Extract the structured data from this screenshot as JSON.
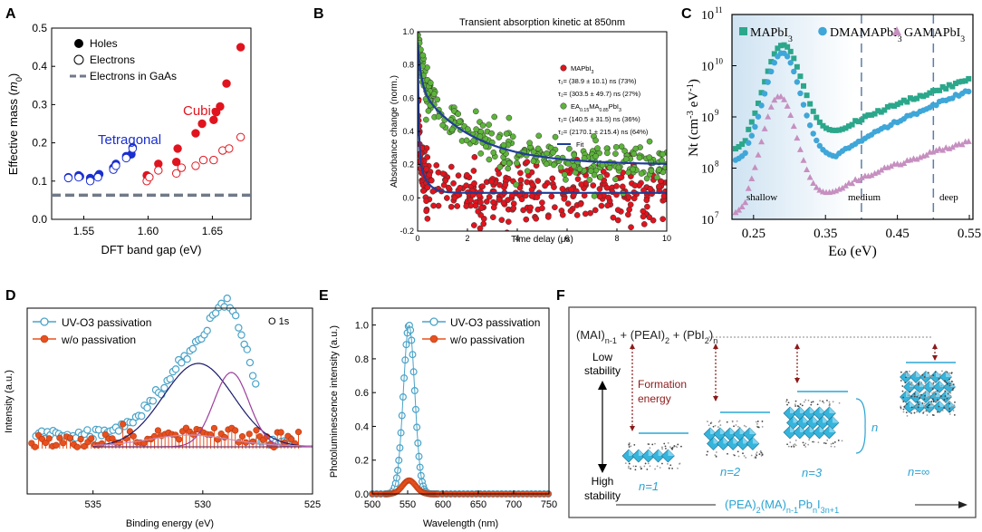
{
  "panel_labels": [
    "A",
    "B",
    "C",
    "D",
    "E",
    "F"
  ],
  "colors": {
    "blue": "#1a2fd0",
    "red": "#e0141e",
    "green": "#5db43a",
    "darkred": "#c0262c",
    "navy": "#1f3d99",
    "teal": "#2ba78b",
    "cyan": "#3fa6d8",
    "pink": "#c68fc0",
    "ltblue": "#4aa3c8",
    "orange": "#e8501f",
    "purple": "#9c3e9c"
  },
  "chart_data": [
    {
      "id": "A",
      "type": "scatter",
      "xlabel": "DFT band gap (eV)",
      "ylabel": "Effective mass (m0)",
      "ylabel_main": "Effective mass (",
      "ylabel_sym": "m",
      "ylabel_sub": "0",
      "ylabel_close": ")",
      "xlim": [
        1.525,
        1.68
      ],
      "ylim": [
        0,
        0.5
      ],
      "xticks": [
        "1.55",
        "1.60",
        "1.65"
      ],
      "xtick_values": [
        1.55,
        1.6,
        1.65
      ],
      "yticks": [
        "0.0",
        "0.1",
        "0.2",
        "0.3",
        "0.4",
        "0.5"
      ],
      "ytick_values": [
        0,
        0.1,
        0.2,
        0.3,
        0.4,
        0.5
      ],
      "legend": [
        "Holes",
        "Electrons",
        "Electrons in GaAs"
      ],
      "annotations": [
        "Tetragonal",
        "Cubic"
      ],
      "gaas_line": 0.063,
      "series": [
        {
          "name": "Holes tetragonal",
          "style": "filled",
          "color": "blue",
          "x": [
            1.538,
            1.546,
            1.547,
            1.555,
            1.561,
            1.562,
            1.573,
            1.575,
            1.583,
            1.587,
            1.588
          ],
          "y": [
            0.11,
            0.115,
            0.112,
            0.108,
            0.113,
            0.118,
            0.135,
            0.145,
            0.165,
            0.17,
            0.188
          ]
        },
        {
          "name": "Electrons tetragonal",
          "style": "open",
          "color": "blue",
          "x": [
            1.538,
            1.546,
            1.555,
            1.561,
            1.573,
            1.575,
            1.583,
            1.588
          ],
          "y": [
            0.108,
            0.11,
            0.1,
            0.11,
            0.13,
            0.14,
            0.16,
            0.185
          ]
        },
        {
          "name": "Holes cubic",
          "style": "filled",
          "color": "red",
          "x": [
            1.599,
            1.608,
            1.622,
            1.623,
            1.637,
            1.642,
            1.651,
            1.653,
            1.656,
            1.661,
            1.672
          ],
          "y": [
            0.115,
            0.145,
            0.15,
            0.185,
            0.225,
            0.25,
            0.26,
            0.28,
            0.295,
            0.355,
            0.45
          ]
        },
        {
          "name": "Electrons cubic",
          "style": "open",
          "color": "red",
          "x": [
            1.599,
            1.601,
            1.608,
            1.622,
            1.626,
            1.637,
            1.643,
            1.651,
            1.658,
            1.663,
            1.672
          ],
          "y": [
            0.1,
            0.11,
            0.128,
            0.12,
            0.135,
            0.14,
            0.155,
            0.155,
            0.18,
            0.185,
            0.215
          ]
        }
      ]
    },
    {
      "id": "B",
      "type": "scatter",
      "title": "Transient absorption kinetic at 850nm",
      "xlabel": "Time delay (μs)",
      "ylabel": "Absorbance change (norm.)",
      "xlim": [
        0,
        10
      ],
      "ylim": [
        -0.2,
        1.0
      ],
      "xticks": [
        "0",
        "2",
        "4",
        "6",
        "8",
        "10"
      ],
      "xtick_values": [
        0,
        2,
        4,
        6,
        8,
        10
      ],
      "yticks": [
        "-0.2",
        "0.0",
        "0.2",
        "0.4",
        "0.6",
        "0.8",
        "1.0"
      ],
      "ytick_values": [
        -0.2,
        0,
        0.2,
        0.4,
        0.6,
        0.8,
        1.0
      ],
      "legend_lines": [
        {
          "kind": "dot",
          "color": "red",
          "text": "MAPbI",
          "sub": "3"
        },
        {
          "kind": "text",
          "text": "τ₁= (38.9 ± 10.1) ns (73%)"
        },
        {
          "kind": "text",
          "text": "τ₂= (303.5 ± 49.7) ns (27%)"
        },
        {
          "kind": "dot",
          "color": "green",
          "text": "EA",
          "sub": "0.15",
          "text2": "MA",
          "sub2": "0.85",
          "text3": "PbI",
          "sub3": "3"
        },
        {
          "kind": "text",
          "text": "τ₁= (140.5 ± 31.5) ns (36%)"
        },
        {
          "kind": "text",
          "text": "τ₂= (2170.1 ± 215.4) ns (64%)"
        },
        {
          "kind": "line",
          "color": "navy",
          "text": "Fit"
        }
      ],
      "series": [
        {
          "name": "MAPbI3",
          "color": "red",
          "model": {
            "a1": 0.73,
            "t1": 0.039,
            "a2": 0.27,
            "t2": 0.3035,
            "offset": 0.03,
            "noise": 0.09
          }
        },
        {
          "name": "EA0.15MA0.85PbI3",
          "color": "green",
          "model": {
            "a1": 0.36,
            "t1": 0.14,
            "a2": 0.64,
            "t2": 2.17,
            "offset": 0.2,
            "noise": 0.06
          }
        }
      ]
    },
    {
      "id": "C",
      "type": "scatter",
      "xlabel": "Eω (eV)",
      "ylabel": "Nt (cm⁻³ eV⁻¹)",
      "ylabel_main": "Nt (cm",
      "ylabel_sup1": "-3",
      "ylabel_mid": " eV",
      "ylabel_sup2": "-1",
      "ylabel_close": ")",
      "xlim": [
        0.22,
        0.555
      ],
      "ylog": [
        7,
        11
      ],
      "xticks": [
        "0.25",
        "0.35",
        "0.45",
        "0.55"
      ],
      "xtick_values": [
        0.25,
        0.35,
        0.45,
        0.55
      ],
      "yticks": [
        "10",
        "10",
        "10",
        "10",
        "10"
      ],
      "ytick_exps": [
        "7",
        "8",
        "9",
        "10",
        "11"
      ],
      "ytick_values": [
        7,
        8,
        9,
        10,
        11
      ],
      "legend": [
        "MAPbI3",
        "DMAMAPbI3",
        "GAMAPbI3"
      ],
      "regions": [
        "shallow",
        "medium",
        "deep"
      ],
      "region_lines": [
        0.4,
        0.5
      ],
      "series": [
        {
          "name": "MAPbI3",
          "color": "teal",
          "marker": "square"
        },
        {
          "name": "DMAMAPbI3",
          "color": "cyan",
          "marker": "circle"
        },
        {
          "name": "GAMAPbI3",
          "color": "pink",
          "marker": "triangle"
        }
      ]
    },
    {
      "id": "D",
      "type": "line",
      "xlabel": "Binding energy (eV)",
      "ylabel": "Intensity (a.u.)",
      "annotation": "O 1s",
      "xlim": [
        538,
        525
      ],
      "xticks": [
        "535",
        "530",
        "525"
      ],
      "xtick_values": [
        535,
        530,
        525
      ],
      "legend": [
        "UV-O3 passivation",
        "w/o passivation"
      ],
      "series": [
        {
          "name": "UV-O3 passivation",
          "color": "ltblue"
        },
        {
          "name": "w/o passivation",
          "color": "orange"
        }
      ]
    },
    {
      "id": "E",
      "type": "line",
      "xlabel": "Wavelength (nm)",
      "ylabel": "Photoluminescence intensity (a.u.)",
      "xlim": [
        500,
        750
      ],
      "ylim": [
        0,
        1.1
      ],
      "xticks": [
        "500",
        "550",
        "600",
        "650",
        "700",
        "750"
      ],
      "xtick_values": [
        500,
        550,
        600,
        650,
        700,
        750
      ],
      "yticks": [
        "0.0",
        "0.2",
        "0.4",
        "0.6",
        "0.8",
        "1.0"
      ],
      "ytick_values": [
        0,
        0.2,
        0.4,
        0.6,
        0.8,
        1.0
      ],
      "legend": [
        "UV-O3 passivation",
        "w/o passivation"
      ],
      "series": [
        {
          "name": "UV-O3 passivation",
          "color": "ltblue",
          "peak": 552,
          "fwhm": 19,
          "amp": 1.0
        },
        {
          "name": "w/o passivation",
          "color": "orange",
          "peak": 552,
          "fwhm": 22,
          "amp": 0.08
        }
      ]
    }
  ],
  "panel_f": {
    "formula_top": "(MAI)n-1 + (PEAI)2 + (PbI2)n",
    "low_stability": "Low stability",
    "high_stability": "High stability",
    "formation_energy": "Formation energy",
    "n_labels": [
      "n=1",
      "n=2",
      "n=3",
      "n=∞"
    ],
    "n_bracket": "n",
    "formula_bottom": "(PEA)2(MA)n-1PbnI3n+1"
  }
}
